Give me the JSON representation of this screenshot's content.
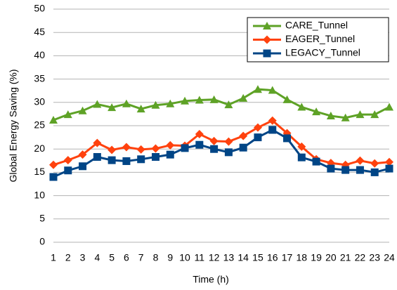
{
  "chart_data": {
    "type": "line",
    "x_label": "Time (h)",
    "y_label": "Global Energy Saving (%)",
    "x": [
      1,
      2,
      3,
      4,
      5,
      6,
      7,
      8,
      9,
      10,
      11,
      12,
      13,
      14,
      15,
      16,
      17,
      18,
      19,
      20,
      21,
      22,
      23,
      24
    ],
    "xlim": [
      1,
      24
    ],
    "xticks": [
      1,
      2,
      3,
      4,
      5,
      6,
      7,
      8,
      9,
      10,
      11,
      12,
      13,
      14,
      15,
      16,
      17,
      18,
      19,
      20,
      21,
      22,
      23,
      24
    ],
    "ylim": [
      0,
      50
    ],
    "yticks": [
      0,
      5,
      10,
      15,
      20,
      25,
      30,
      35,
      40,
      45,
      50
    ],
    "grid": true,
    "legend": "top-right",
    "series": [
      {
        "name": "CARE_Tunnel",
        "color": "#5ea226",
        "marker": "triangle",
        "values": [
          26.2,
          27.4,
          28.2,
          29.6,
          28.9,
          29.7,
          28.6,
          29.4,
          29.7,
          30.3,
          30.5,
          30.6,
          29.5,
          30.9,
          32.8,
          32.6,
          30.6,
          29.0,
          28.0,
          27.1,
          26.7,
          27.4,
          27.4,
          29.0
        ]
      },
      {
        "name": "EAGER_Tunnel",
        "color": "#ff420e",
        "marker": "diamond",
        "values": [
          16.6,
          17.6,
          18.8,
          21.3,
          19.8,
          20.4,
          19.9,
          20.1,
          20.8,
          20.7,
          23.2,
          21.7,
          21.6,
          22.8,
          24.6,
          26.1,
          23.4,
          20.5,
          17.8,
          17.0,
          16.6,
          17.5,
          16.9,
          17.2
        ]
      },
      {
        "name": "LEGACY_Tunnel",
        "color": "#004586",
        "marker": "square",
        "values": [
          14.0,
          15.4,
          16.3,
          18.3,
          17.6,
          17.4,
          17.8,
          18.3,
          18.8,
          20.2,
          20.9,
          20.0,
          19.3,
          20.3,
          22.5,
          24.1,
          22.3,
          18.2,
          17.3,
          15.8,
          15.5,
          15.5,
          15.0,
          15.8
        ]
      }
    ]
  }
}
